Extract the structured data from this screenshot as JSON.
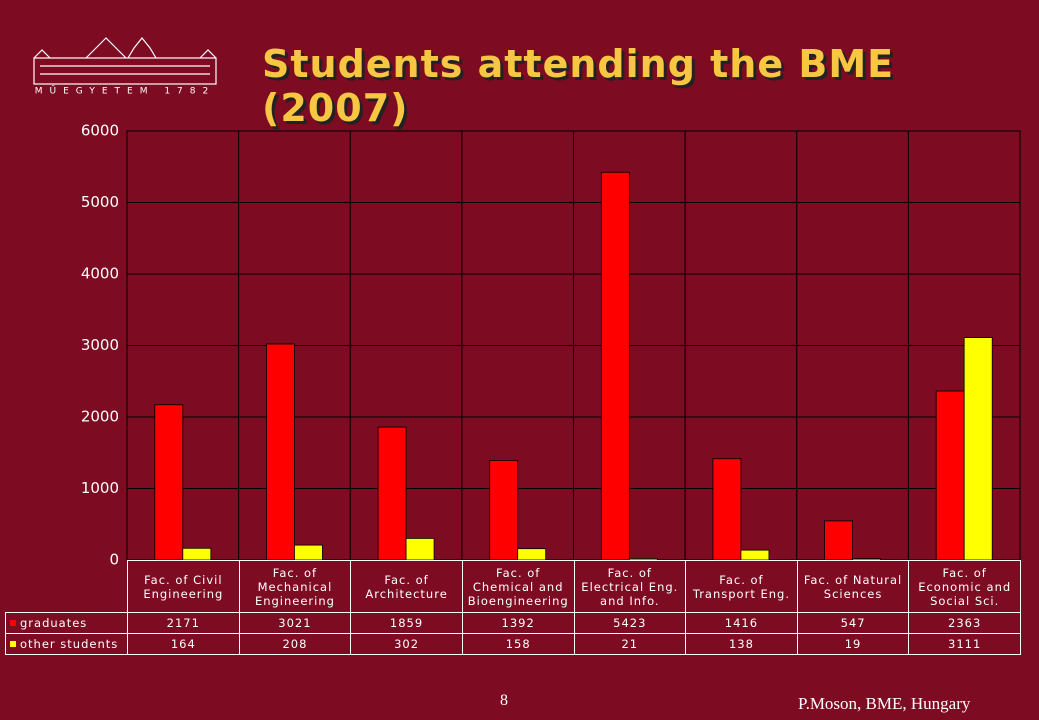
{
  "slide": {
    "logo_text": "MŰEGYETEM 1782",
    "page_number": "8",
    "footer": "P.Moson, BME, Hungary"
  },
  "chart_data": {
    "type": "bar",
    "title": "Students attending the BME (2007)",
    "categories": [
      "Fac. of Civil Engineering",
      "Fac. of Mechanical Engineering",
      "Fac. of Architecture",
      "Fac. of Chemical and Bioengineering",
      "Fac. of Electrical Eng. and Info.",
      "Fac. of Transport Eng.",
      "Fac. of Natural Sciences",
      "Fac. of Economic and Social Sci."
    ],
    "series": [
      {
        "name": "graduates",
        "color": "#ff0000",
        "values": [
          2171,
          3021,
          1859,
          1392,
          5423,
          1416,
          547,
          2363
        ]
      },
      {
        "name": "other students",
        "color": "#ffff00",
        "values": [
          164,
          208,
          302,
          158,
          21,
          138,
          19,
          3111
        ]
      }
    ],
    "ylim": [
      0,
      6000
    ],
    "yticks": [
      0,
      1000,
      2000,
      3000,
      4000,
      5000,
      6000
    ],
    "grid": true
  }
}
